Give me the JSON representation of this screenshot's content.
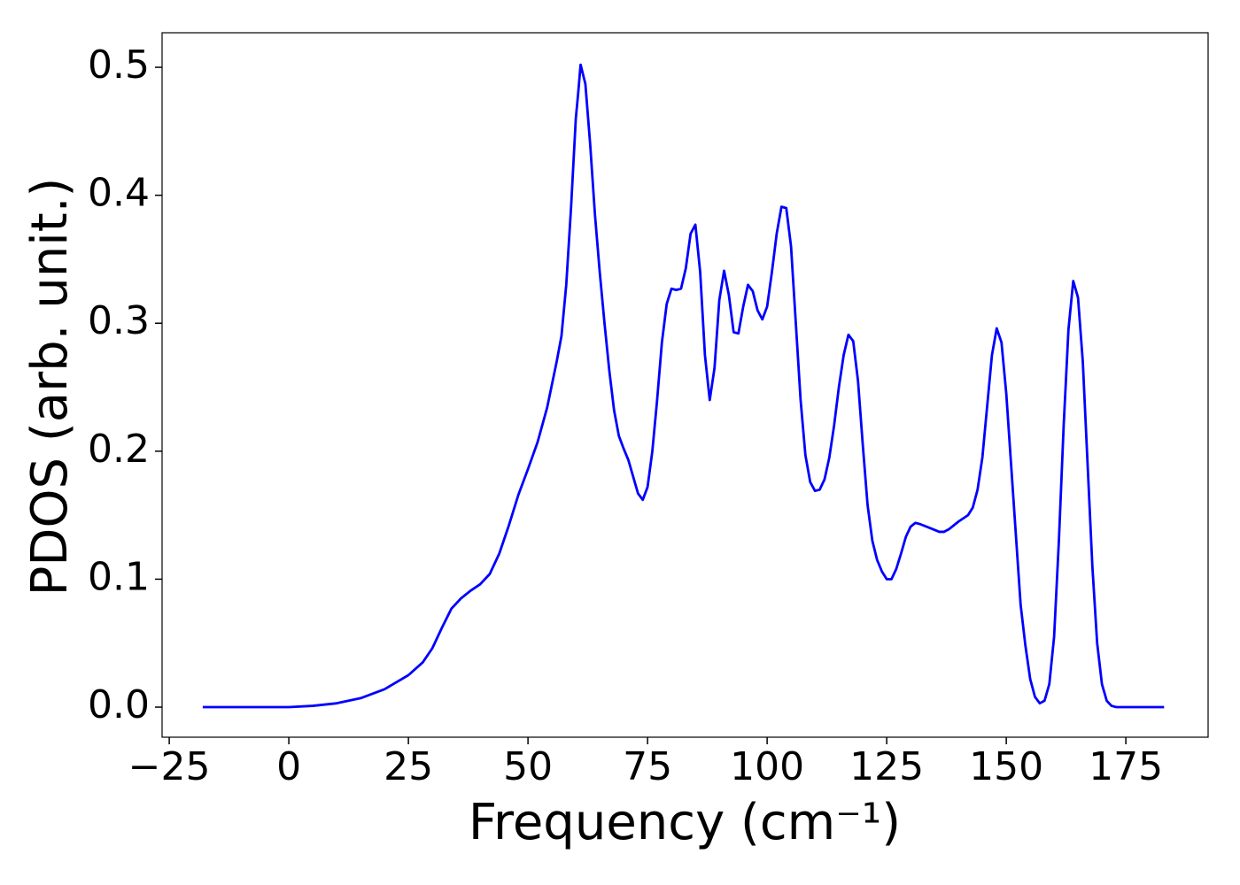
{
  "chart_data": {
    "type": "line",
    "xlabel": "Frequency (cm⁻¹)",
    "ylabel": "PDOS (arb. unit.)",
    "x": [
      -18,
      0,
      5,
      10,
      15,
      20,
      25,
      28,
      30,
      32,
      34,
      36,
      38,
      40,
      42,
      44,
      46,
      48,
      50,
      52,
      54,
      56,
      57,
      58,
      59,
      60,
      60.5,
      61,
      62,
      63,
      64,
      65,
      66,
      67,
      68,
      69,
      70,
      71,
      72,
      73,
      74,
      75,
      76,
      77,
      78,
      79,
      80,
      81,
      82,
      83,
      84,
      85,
      86,
      87,
      88,
      89,
      90,
      91,
      92,
      93,
      94,
      95,
      96,
      97,
      98,
      99,
      100,
      101,
      102,
      103,
      104,
      105,
      106,
      107,
      108,
      109,
      110,
      111,
      112,
      113,
      114,
      115,
      116,
      117,
      118,
      119,
      120,
      121,
      122,
      123,
      124,
      125,
      126,
      127,
      128,
      129,
      130,
      131,
      132,
      134,
      136,
      137,
      138,
      140,
      142,
      143,
      144,
      145,
      146,
      147,
      148,
      149,
      150,
      151,
      152,
      153,
      154,
      155,
      156,
      157,
      158,
      159,
      160,
      161,
      162,
      163,
      164,
      165,
      166,
      167,
      168,
      169,
      170,
      171,
      172,
      173,
      183
    ],
    "series": [
      {
        "color": "#0000ff",
        "values": [
          0,
          0,
          0.001,
          0.003,
          0.007,
          0.014,
          0.025,
          0.035,
          0.046,
          0.062,
          0.077,
          0.085,
          0.091,
          0.096,
          0.104,
          0.12,
          0.142,
          0.166,
          0.186,
          0.207,
          0.234,
          0.27,
          0.29,
          0.33,
          0.39,
          0.46,
          0.48,
          0.502,
          0.487,
          0.44,
          0.385,
          0.34,
          0.3,
          0.263,
          0.232,
          0.212,
          0.202,
          0.193,
          0.18,
          0.167,
          0.162,
          0.172,
          0.2,
          0.24,
          0.285,
          0.315,
          0.327,
          0.326,
          0.327,
          0.343,
          0.37,
          0.377,
          0.34,
          0.275,
          0.24,
          0.265,
          0.318,
          0.341,
          0.322,
          0.293,
          0.292,
          0.313,
          0.33,
          0.325,
          0.31,
          0.303,
          0.313,
          0.34,
          0.37,
          0.391,
          0.39,
          0.36,
          0.3,
          0.24,
          0.197,
          0.176,
          0.169,
          0.17,
          0.178,
          0.195,
          0.22,
          0.25,
          0.275,
          0.291,
          0.286,
          0.255,
          0.205,
          0.158,
          0.13,
          0.115,
          0.106,
          0.1,
          0.1,
          0.108,
          0.12,
          0.133,
          0.141,
          0.144,
          0.143,
          0.14,
          0.137,
          0.137,
          0.139,
          0.145,
          0.15,
          0.156,
          0.17,
          0.195,
          0.235,
          0.275,
          0.296,
          0.285,
          0.245,
          0.19,
          0.135,
          0.08,
          0.048,
          0.022,
          0.008,
          0.003,
          0.005,
          0.018,
          0.055,
          0.13,
          0.22,
          0.295,
          0.333,
          0.32,
          0.27,
          0.19,
          0.11,
          0.05,
          0.018,
          0.005,
          0.001,
          0,
          0
        ]
      }
    ],
    "xlim": [
      -26.5,
      192.2
    ],
    "ylim": [
      -0.0235,
      0.527
    ],
    "xticks": [
      {
        "value": -25,
        "label": "−25"
      },
      0,
      25,
      50,
      75,
      100,
      125,
      150,
      175
    ],
    "yticks": [
      {
        "value": 0,
        "label": "0.0"
      },
      0.1,
      0.2,
      0.3,
      0.4,
      0.5
    ]
  }
}
